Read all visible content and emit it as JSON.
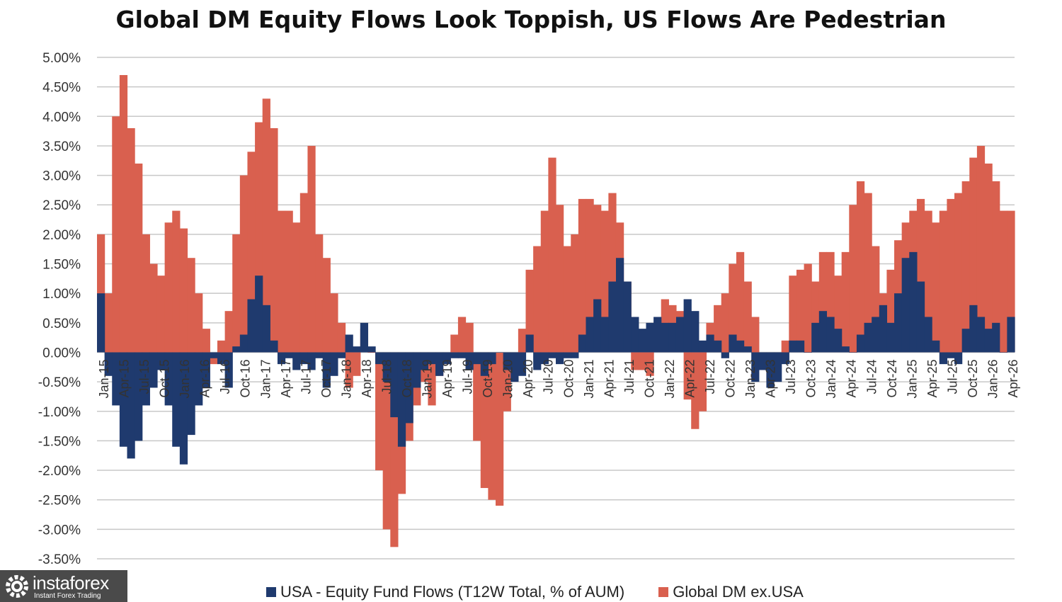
{
  "chart_data": {
    "type": "bar",
    "title": "Global DM Equity Flows Look Toppish, US Flows Are Pedestrian",
    "xlabel": "",
    "ylabel": "",
    "ylim": [
      -3.5,
      5.0
    ],
    "y_tick_values": [
      5.0,
      4.5,
      4.0,
      3.5,
      3.0,
      2.5,
      2.0,
      1.5,
      1.0,
      0.5,
      0.0,
      -0.5,
      -1.0,
      -1.5,
      -2.0,
      -2.5,
      -3.0,
      -3.5
    ],
    "y_tick_labels": [
      "5.00%",
      "4.50%",
      "4.00%",
      "3.50%",
      "3.00%",
      "2.50%",
      "2.00%",
      "1.50%",
      "1.00%",
      "0.50%",
      "0.00%",
      "-0.50%",
      "-1.00%",
      "-1.50%",
      "-2.00%",
      "-2.50%",
      "-3.00%",
      "-3.50%"
    ],
    "x_tick_labels": [
      "Jan-15",
      "Apr-15",
      "Jul-15",
      "Oct-15",
      "Jan-16",
      "Apr-16",
      "Jul-16",
      "Oct-16",
      "Jan-17",
      "Apr-17",
      "Jul-17",
      "Oct-17",
      "Jan-18",
      "Apr-18",
      "Jul-18",
      "Oct-18",
      "Jan-19",
      "Apr-19",
      "Jul-19",
      "Oct-19",
      "Jan-20",
      "Apr-20",
      "Jul-20",
      "Oct-20",
      "Jan-21",
      "Apr-21",
      "Jul-21",
      "Oct-21",
      "Jan-22",
      "Apr-22",
      "Jul-22",
      "Oct-22",
      "Jan-23",
      "Apr-23",
      "Jul-23",
      "Oct-23",
      "Jan-24",
      "Apr-24",
      "Jul-24",
      "Oct-24",
      "Jan-25",
      "Apr-25",
      "Jul-25",
      "Oct-25",
      "Jan-26",
      "Apr-26"
    ],
    "grid": true,
    "legend_position": "bottom",
    "series_resolution": "monthly",
    "series": [
      {
        "name": "USA - Equity Fund Flows (T12W Total, % of AUM)",
        "color": "#1f3a6e",
        "values": [
          1.0,
          -0.4,
          -0.9,
          -1.6,
          -1.8,
          -1.5,
          -0.9,
          -0.6,
          -0.3,
          -0.9,
          -1.6,
          -1.9,
          -1.4,
          -0.9,
          -0.6,
          -0.1,
          -0.2,
          -0.6,
          0.1,
          0.3,
          0.9,
          1.3,
          0.8,
          0.2,
          -0.2,
          -0.1,
          -0.3,
          -0.2,
          -0.3,
          -0.1,
          -0.6,
          -0.4,
          -0.1,
          0.3,
          0.1,
          0.5,
          0.1,
          -0.2,
          -0.5,
          -1.1,
          -1.6,
          -1.2,
          -0.6,
          -0.3,
          -0.2,
          -0.4,
          -0.2,
          -0.1,
          -0.1,
          -0.3,
          -0.2,
          -0.4,
          -0.2,
          0.0,
          -0.3,
          -0.5,
          -0.4,
          0.3,
          -0.3,
          -0.2,
          -0.1,
          -0.2,
          -0.1,
          -0.1,
          0.3,
          0.6,
          0.9,
          0.6,
          1.2,
          1.6,
          1.2,
          0.6,
          0.4,
          0.5,
          0.6,
          0.5,
          0.5,
          0.6,
          0.9,
          0.7,
          0.2,
          0.3,
          0.2,
          -0.1,
          0.3,
          0.2,
          0.1,
          -0.5,
          -0.3,
          -0.6,
          -0.5,
          -0.2,
          0.2,
          0.2,
          0.0,
          0.5,
          0.7,
          0.6,
          0.4,
          0.1,
          0.0,
          0.3,
          0.5,
          0.6,
          0.8,
          0.5,
          1.0,
          1.6,
          1.7,
          1.2,
          0.6,
          0.2,
          -0.2,
          -0.1,
          -0.2,
          0.4,
          0.8,
          0.6,
          0.4,
          0.5,
          0.0,
          0.6
        ]
      },
      {
        "name": "Global DM ex.USA",
        "color": "#d9604f",
        "values": [
          2.0,
          1.0,
          4.0,
          4.7,
          3.8,
          3.2,
          2.0,
          1.5,
          1.3,
          2.2,
          2.4,
          2.1,
          1.6,
          1.0,
          0.4,
          -0.2,
          0.2,
          0.7,
          2.0,
          3.0,
          3.4,
          3.9,
          4.3,
          3.8,
          2.4,
          2.4,
          2.2,
          2.7,
          3.5,
          2.0,
          1.6,
          1.0,
          0.5,
          -0.6,
          -0.4,
          0.4,
          0.0,
          -2.0,
          -3.0,
          -3.3,
          -2.4,
          -1.5,
          -0.9,
          -0.5,
          -0.9,
          -0.4,
          -0.2,
          0.3,
          0.6,
          0.5,
          -1.5,
          -2.3,
          -2.5,
          -2.6,
          -1.0,
          -0.3,
          0.4,
          1.4,
          1.8,
          2.4,
          3.3,
          2.5,
          1.8,
          2.0,
          2.6,
          2.6,
          2.5,
          2.4,
          2.7,
          2.2,
          1.2,
          -0.3,
          -0.3,
          -0.4,
          0.4,
          0.9,
          0.8,
          0.7,
          -0.8,
          -1.3,
          -1.0,
          0.5,
          0.8,
          1.0,
          1.5,
          1.7,
          1.2,
          0.6,
          -0.3,
          -0.5,
          -0.2,
          0.2,
          1.3,
          1.4,
          1.5,
          1.2,
          1.7,
          1.7,
          1.3,
          1.7,
          2.5,
          2.9,
          2.7,
          1.8,
          1.0,
          1.4,
          1.9,
          2.2,
          2.4,
          2.6,
          2.4,
          2.2,
          2.4,
          2.6,
          2.7,
          2.9,
          3.3,
          3.5,
          3.2,
          2.9,
          2.4,
          2.4
        ]
      }
    ]
  },
  "legend": {
    "usa_label": "USA - Equity Fund Flows (T12W Total, % of AUM)",
    "dm_label": "Global DM ex.USA",
    "usa_color": "#1f3a6e",
    "dm_color": "#d9604f"
  },
  "watermark": {
    "brand": "instaforex",
    "subtitle": "Instant Forex Trading",
    "icon": "gear-logo-icon"
  }
}
